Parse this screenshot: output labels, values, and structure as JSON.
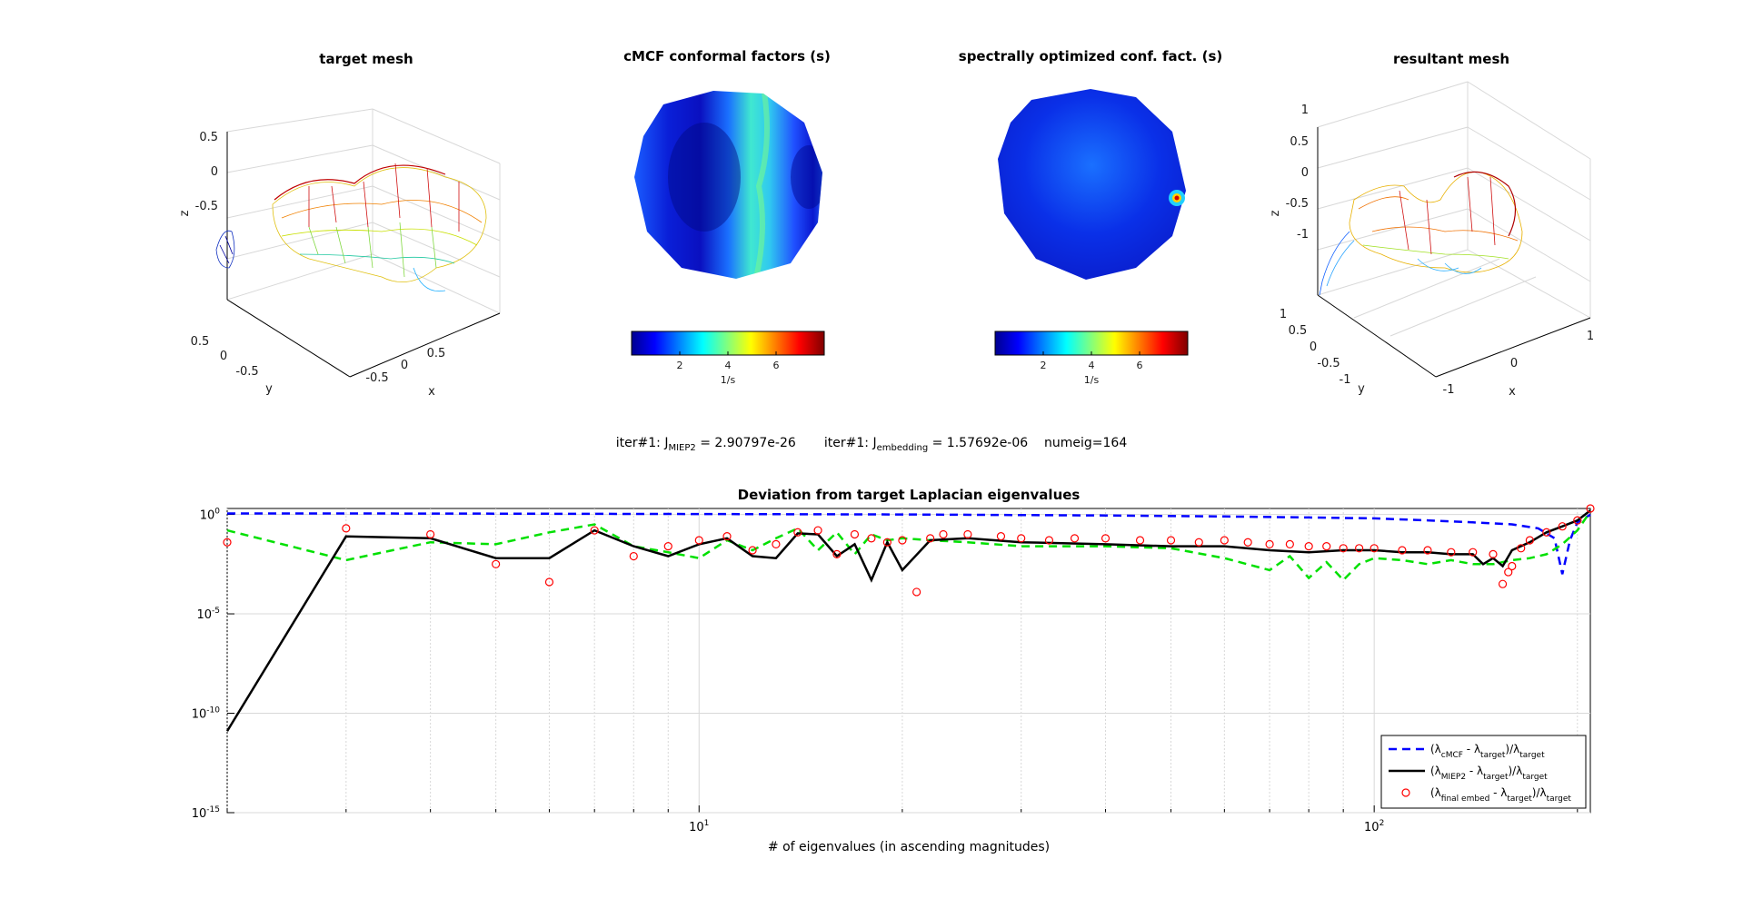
{
  "panels": {
    "target_mesh": {
      "title": "target mesh",
      "xlabel": "x",
      "ylabel": "y",
      "zlabel": "z",
      "z_ticks": [
        "0.5",
        "0",
        "-0.5"
      ],
      "y_ticks": [
        "0.5",
        "0",
        "-0.5"
      ],
      "x_ticks": [
        "0.5",
        "0",
        "-0.5"
      ]
    },
    "cmcf": {
      "title": "cMCF conformal factors (s)",
      "colorbar_ticks": [
        "2",
        "4",
        "6"
      ],
      "colorbar_unit": "1/s"
    },
    "spectral": {
      "title": "spectrally optimized conf. fact. (s)",
      "colorbar_ticks": [
        "2",
        "4",
        "6"
      ],
      "colorbar_unit": "1/s"
    },
    "resultant_mesh": {
      "title": "resultant mesh",
      "xlabel": "x",
      "ylabel": "y",
      "zlabel": "z",
      "z_ticks": [
        "1",
        "0.5",
        "0",
        "-0.5",
        "-1"
      ],
      "y_ticks": [
        "1",
        "0.5",
        "0",
        "-0.5",
        "-1"
      ],
      "x_ticks": [
        "1",
        "0",
        "-1"
      ]
    }
  },
  "status": {
    "iter1_label": "iter#1: J",
    "j1_sub": "MIEP2",
    "j1_value": " = 2.90797e-26",
    "iter2_label": "iter#1: J",
    "j2_sub": "embedding",
    "j2_value": " = 1.57692e-06",
    "numeig": "numeig=164"
  },
  "chart_data": {
    "type": "line",
    "title": "Deviation from target Laplacian eigenvalues",
    "xlabel": "# of eigenvalues (in ascending magnitudes)",
    "ylabel": "",
    "xscale": "log",
    "yscale": "log",
    "xlim": [
      2,
      209
    ],
    "ylim_log10": [
      -15,
      0.3
    ],
    "ytick_labels": [
      {
        "base": "10",
        "exp": "0"
      },
      {
        "base": "10",
        "exp": "-5"
      },
      {
        "base": "10",
        "exp": "-10"
      },
      {
        "base": "10",
        "exp": "-15"
      }
    ],
    "xtick_labels": [
      {
        "base": "10",
        "exp": "1"
      },
      {
        "base": "10",
        "exp": "2"
      }
    ],
    "grid": true,
    "legend_position": "bottom-right",
    "legend": [
      {
        "main": "(λ",
        "sub1": "cMCF",
        "mid": " - λ",
        "sub2": "target",
        "end": ")/λ",
        "sub3": "target"
      },
      {
        "main": "(λ",
        "sub1": "MIEP2",
        "mid": " - λ",
        "sub2": "target",
        "end": ")/λ",
        "sub3": "target"
      },
      {
        "main": "(λ",
        "sub1": "final embed",
        "mid": " - λ",
        "sub2": "target",
        "end": ")/λ",
        "sub3": "target"
      }
    ],
    "series": [
      {
        "style": "blue-dashed",
        "x": [
          2,
          3,
          5,
          10,
          20,
          40,
          60,
          80,
          100,
          120,
          140,
          160,
          175,
          185,
          190,
          195,
          200,
          205,
          209
        ],
        "log10y": [
          0.05,
          0.05,
          0.04,
          0.02,
          0.0,
          -0.05,
          -0.1,
          -0.15,
          -0.2,
          -0.3,
          -0.4,
          -0.5,
          -0.7,
          -1.2,
          -3.0,
          -1.3,
          -0.4,
          -0.2,
          0.0
        ]
      },
      {
        "style": "green-dashed",
        "x": [
          2,
          3,
          4,
          5,
          6,
          7,
          8,
          9,
          10,
          11,
          12,
          13,
          14,
          15,
          16,
          17,
          18,
          19,
          20,
          22,
          25,
          30,
          40,
          50,
          60,
          70,
          75,
          80,
          85,
          90,
          95,
          100,
          110,
          120,
          130,
          140,
          150,
          160,
          170,
          180,
          190,
          200,
          209
        ],
        "log10y": [
          -0.8,
          -2.3,
          -1.4,
          -1.5,
          -0.9,
          -0.5,
          -1.6,
          -1.9,
          -2.2,
          -1.3,
          -1.8,
          -1.2,
          -0.7,
          -1.8,
          -0.9,
          -2.0,
          -1.0,
          -1.3,
          -1.2,
          -1.3,
          -1.4,
          -1.6,
          -1.6,
          -1.7,
          -2.2,
          -2.8,
          -2.1,
          -3.2,
          -2.4,
          -3.3,
          -2.5,
          -2.2,
          -2.3,
          -2.5,
          -2.3,
          -2.5,
          -2.5,
          -2.3,
          -2.2,
          -2.0,
          -1.5,
          -0.8,
          0.15
        ]
      },
      {
        "style": "black-solid",
        "x": [
          2,
          3,
          4,
          5,
          6,
          7,
          8,
          9,
          10,
          11,
          12,
          13,
          14,
          15,
          16,
          17,
          18,
          19,
          20,
          22,
          25,
          30,
          40,
          50,
          60,
          70,
          80,
          90,
          100,
          110,
          120,
          130,
          140,
          145,
          150,
          155,
          160,
          170,
          180,
          190,
          200,
          209
        ],
        "log10y": [
          -10.9,
          -1.1,
          -1.2,
          -2.2,
          -2.2,
          -0.8,
          -1.6,
          -2.1,
          -1.5,
          -1.2,
          -2.1,
          -2.2,
          -0.95,
          -1.0,
          -2.1,
          -1.5,
          -3.3,
          -1.4,
          -2.8,
          -1.3,
          -1.2,
          -1.4,
          -1.5,
          -1.6,
          -1.6,
          -1.8,
          -1.9,
          -1.8,
          -1.8,
          -1.9,
          -1.9,
          -2.0,
          -2.0,
          -2.5,
          -2.2,
          -2.6,
          -1.8,
          -1.4,
          -0.9,
          -0.6,
          -0.3,
          0.2
        ]
      },
      {
        "style": "red-circles",
        "x": [
          2,
          3,
          4,
          5,
          6,
          7,
          8,
          9,
          10,
          11,
          12,
          13,
          14,
          15,
          16,
          17,
          18,
          19,
          20,
          21,
          22,
          23,
          25,
          28,
          30,
          33,
          36,
          40,
          45,
          50,
          55,
          60,
          65,
          70,
          75,
          80,
          85,
          90,
          95,
          100,
          110,
          120,
          130,
          140,
          150,
          155,
          158,
          160,
          165,
          170,
          180,
          190,
          200,
          209
        ],
        "log10y": [
          -1.4,
          -0.7,
          -1.0,
          -2.5,
          -3.4,
          -0.8,
          -2.1,
          -1.6,
          -1.3,
          -1.1,
          -1.8,
          -1.5,
          -0.9,
          -0.8,
          -2.0,
          -1.0,
          -1.2,
          -1.4,
          -1.3,
          -3.9,
          -1.2,
          -1.0,
          -1.0,
          -1.1,
          -1.2,
          -1.3,
          -1.2,
          -1.2,
          -1.3,
          -1.3,
          -1.4,
          -1.3,
          -1.4,
          -1.5,
          -1.5,
          -1.6,
          -1.6,
          -1.7,
          -1.7,
          -1.7,
          -1.8,
          -1.8,
          -1.9,
          -1.9,
          -2.0,
          -3.5,
          -2.9,
          -2.6,
          -1.7,
          -1.3,
          -0.9,
          -0.6,
          -0.3,
          0.3
        ]
      }
    ]
  }
}
